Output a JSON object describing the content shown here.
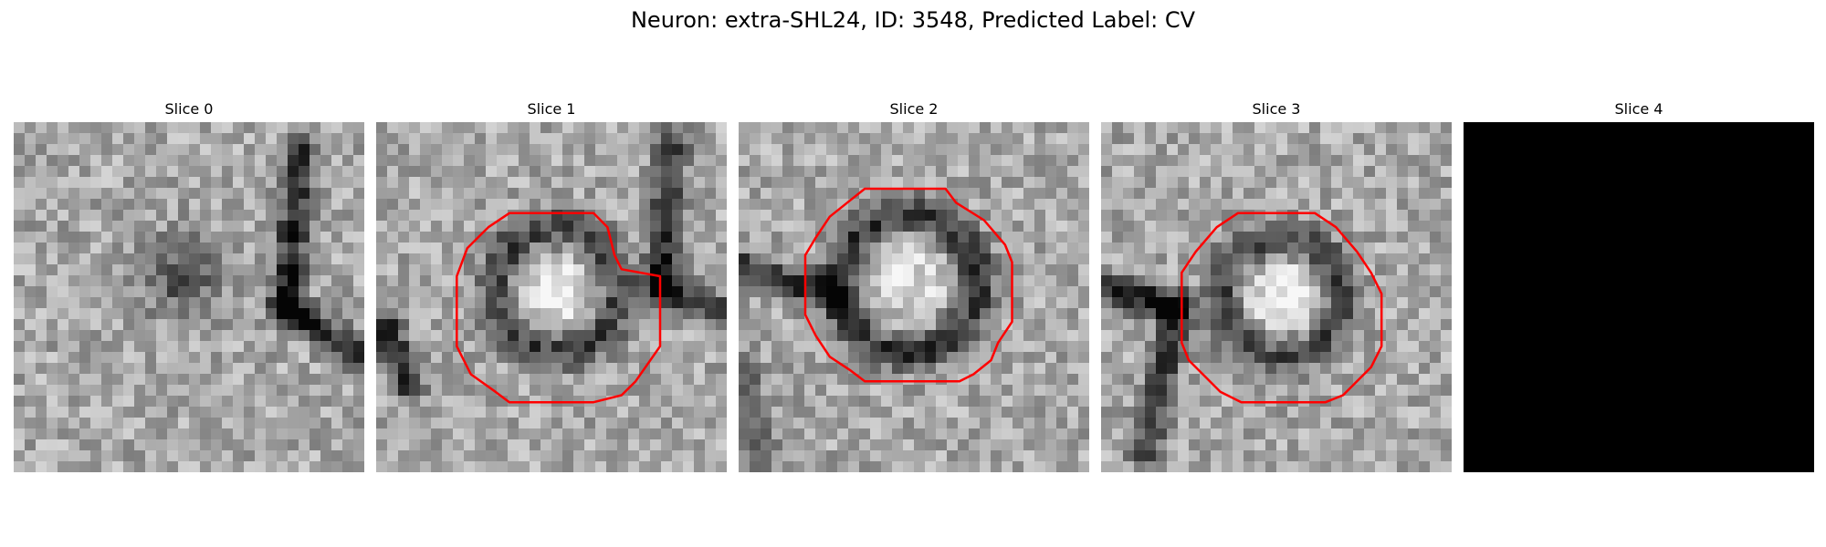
{
  "figure": {
    "title": "Neuron: extra-SHL24, ID: 3548, Predicted Label: CV"
  },
  "panels": [
    {
      "title": "Slice 0",
      "has_contour": false,
      "blank": false
    },
    {
      "title": "Slice 1",
      "has_contour": true,
      "blank": false
    },
    {
      "title": "Slice 2",
      "has_contour": true,
      "blank": false
    },
    {
      "title": "Slice 3",
      "has_contour": true,
      "blank": false
    },
    {
      "title": "Slice 4",
      "has_contour": false,
      "blank": true
    }
  ],
  "colors": {
    "contour": "#ff0000",
    "blank_slice": "#000000"
  }
}
